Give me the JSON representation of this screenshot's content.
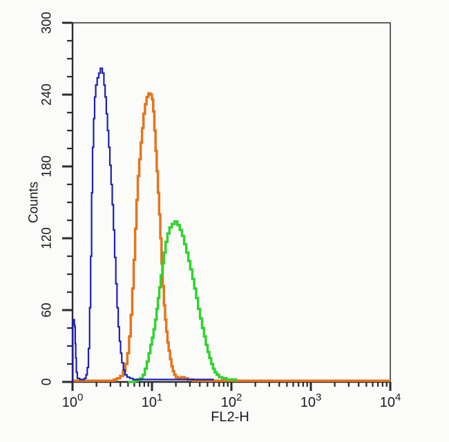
{
  "chart_data": {
    "type": "line",
    "subtype": "flow-cytometry-step-histogram-overlay",
    "title": "",
    "xlabel": "FL2-H",
    "ylabel": "Counts",
    "x_scale": "log10",
    "x_decade_exponents": [
      0,
      1,
      2,
      3,
      4
    ],
    "x_tick_mantissa": "10",
    "xlim_log10": [
      0,
      4
    ],
    "ylim": [
      0,
      300
    ],
    "y_major_ticks": [
      0,
      60,
      120,
      180,
      240,
      300
    ],
    "y_minor_step": 15,
    "grid": false,
    "legend": "none",
    "frame": true,
    "colors": {
      "axis": "#2b2b2b",
      "text": "#1c1c1c",
      "background": "#fbfbfa",
      "blue": "#1e1eb0",
      "orange": "#e2761d",
      "green": "#2fd42f"
    },
    "series": [
      {
        "name": "orange-histogram",
        "color": "#e2761d",
        "stroke_width": 3.5,
        "peak": {
          "x_approx": 9.5,
          "counts": 241
        },
        "points": [
          [
            0.0,
            1
          ],
          [
            0.3,
            1
          ],
          [
            0.45,
            1
          ],
          [
            0.52,
            2
          ],
          [
            0.56,
            3
          ],
          [
            0.6,
            5
          ],
          [
            0.635,
            9
          ],
          [
            0.665,
            15
          ],
          [
            0.69,
            24
          ],
          [
            0.712,
            38
          ],
          [
            0.733,
            56
          ],
          [
            0.752,
            78
          ],
          [
            0.77,
            102
          ],
          [
            0.788,
            128
          ],
          [
            0.805,
            152
          ],
          [
            0.822,
            172
          ],
          [
            0.84,
            186
          ],
          [
            0.858,
            200
          ],
          [
            0.875,
            212
          ],
          [
            0.893,
            224
          ],
          [
            0.912,
            232
          ],
          [
            0.932,
            238
          ],
          [
            0.955,
            241
          ],
          [
            0.98,
            240
          ],
          [
            1.0,
            236
          ],
          [
            1.015,
            226
          ],
          [
            1.03,
            210
          ],
          [
            1.045,
            193
          ],
          [
            1.06,
            176
          ],
          [
            1.075,
            158
          ],
          [
            1.09,
            140
          ],
          [
            1.105,
            120
          ],
          [
            1.12,
            99
          ],
          [
            1.135,
            80
          ],
          [
            1.15,
            64
          ],
          [
            1.165,
            52
          ],
          [
            1.18,
            42
          ],
          [
            1.195,
            33
          ],
          [
            1.21,
            26
          ],
          [
            1.228,
            19
          ],
          [
            1.245,
            13
          ],
          [
            1.262,
            9
          ],
          [
            1.28,
            6
          ],
          [
            1.3,
            4
          ],
          [
            1.33,
            3
          ],
          [
            1.37,
            4
          ],
          [
            1.41,
            3
          ],
          [
            1.45,
            2
          ],
          [
            1.52,
            1
          ],
          [
            1.7,
            1
          ],
          [
            2.0,
            1
          ],
          [
            2.5,
            1
          ],
          [
            3.0,
            1
          ],
          [
            3.5,
            1
          ],
          [
            4.0,
            1
          ]
        ]
      },
      {
        "name": "green-histogram",
        "color": "#2fd42f",
        "stroke_width": 3.5,
        "peak": {
          "x_approx": 19.5,
          "counts": 134
        },
        "points": [
          [
            0.7,
            0
          ],
          [
            0.78,
            1
          ],
          [
            0.82,
            2
          ],
          [
            0.855,
            3
          ],
          [
            0.885,
            6
          ],
          [
            0.91,
            11
          ],
          [
            0.935,
            17
          ],
          [
            0.958,
            24
          ],
          [
            0.98,
            31
          ],
          [
            1.0,
            37
          ],
          [
            1.02,
            44
          ],
          [
            1.04,
            52
          ],
          [
            1.058,
            61
          ],
          [
            1.075,
            70
          ],
          [
            1.092,
            79
          ],
          [
            1.11,
            89
          ],
          [
            1.13,
            99
          ],
          [
            1.15,
            108
          ],
          [
            1.172,
            117
          ],
          [
            1.195,
            124
          ],
          [
            1.22,
            129
          ],
          [
            1.25,
            132
          ],
          [
            1.285,
            134
          ],
          [
            1.32,
            131
          ],
          [
            1.35,
            127
          ],
          [
            1.378,
            122
          ],
          [
            1.405,
            115
          ],
          [
            1.432,
            108
          ],
          [
            1.458,
            101
          ],
          [
            1.482,
            94
          ],
          [
            1.508,
            86
          ],
          [
            1.532,
            78
          ],
          [
            1.556,
            70
          ],
          [
            1.58,
            61
          ],
          [
            1.605,
            53
          ],
          [
            1.63,
            45
          ],
          [
            1.655,
            38
          ],
          [
            1.678,
            31
          ],
          [
            1.7,
            25
          ],
          [
            1.722,
            20
          ],
          [
            1.745,
            15
          ],
          [
            1.768,
            11
          ],
          [
            1.79,
            8
          ],
          [
            1.815,
            6
          ],
          [
            1.845,
            4
          ],
          [
            1.885,
            3
          ],
          [
            1.94,
            2
          ],
          [
            2.0,
            2
          ],
          [
            2.06,
            1
          ]
        ]
      },
      {
        "name": "blue-histogram",
        "color": "#1e1eb0",
        "stroke_width": 2.2,
        "peak": {
          "x_approx": 2.3,
          "counts": 262
        },
        "first_channel_spike_counts": 52,
        "points": [
          [
            0.0,
            0
          ],
          [
            0.004,
            52
          ],
          [
            0.01,
            52
          ],
          [
            0.016,
            52
          ],
          [
            0.022,
            48
          ],
          [
            0.028,
            46
          ],
          [
            0.034,
            32
          ],
          [
            0.04,
            20
          ],
          [
            0.048,
            8
          ],
          [
            0.06,
            3
          ],
          [
            0.09,
            2
          ],
          [
            0.12,
            2
          ],
          [
            0.15,
            3
          ],
          [
            0.17,
            6
          ],
          [
            0.185,
            12
          ],
          [
            0.2,
            28
          ],
          [
            0.215,
            62
          ],
          [
            0.228,
            105
          ],
          [
            0.24,
            158
          ],
          [
            0.252,
            196
          ],
          [
            0.265,
            220
          ],
          [
            0.278,
            238
          ],
          [
            0.292,
            248
          ],
          [
            0.31,
            254
          ],
          [
            0.33,
            258
          ],
          [
            0.35,
            262
          ],
          [
            0.375,
            258
          ],
          [
            0.395,
            248
          ],
          [
            0.41,
            238
          ],
          [
            0.425,
            224
          ],
          [
            0.44,
            210
          ],
          [
            0.455,
            196
          ],
          [
            0.47,
            181
          ],
          [
            0.485,
            165
          ],
          [
            0.5,
            148
          ],
          [
            0.515,
            127
          ],
          [
            0.53,
            104
          ],
          [
            0.545,
            82
          ],
          [
            0.56,
            62
          ],
          [
            0.575,
            46
          ],
          [
            0.59,
            34
          ],
          [
            0.605,
            24
          ],
          [
            0.62,
            16
          ],
          [
            0.64,
            10
          ],
          [
            0.66,
            6
          ],
          [
            0.685,
            4
          ],
          [
            0.72,
            3
          ],
          [
            0.76,
            2
          ],
          [
            0.85,
            2
          ],
          [
            1.0,
            2
          ],
          [
            1.2,
            2
          ],
          [
            1.4,
            2
          ],
          [
            1.6,
            2
          ],
          [
            1.78,
            2
          ]
        ]
      }
    ]
  }
}
